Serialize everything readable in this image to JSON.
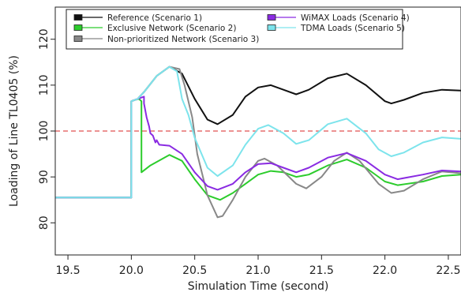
{
  "chart_data": {
    "type": "line",
    "title": "",
    "xlabel": "Simulation Time (second)",
    "ylabel": "Loading of Line TL0405 (%)",
    "xlim": [
      19.4,
      22.6
    ],
    "ylim": [
      73,
      127
    ],
    "xticks": [
      "19.5",
      "20.0",
      "20.5",
      "21.0",
      "21.5",
      "22.0",
      "22.5"
    ],
    "yticks": [
      "80",
      "90",
      "100",
      "110",
      "120"
    ],
    "reference_line": {
      "y": 100,
      "color": "#e05050",
      "style": "dashed"
    },
    "legend_position": "top",
    "series": [
      {
        "name": "Reference (Scenario 1)",
        "color": "#111111",
        "points": [
          [
            19.4,
            85.5
          ],
          [
            20.0,
            85.5
          ],
          [
            20.0,
            106.5
          ],
          [
            20.05,
            107.0
          ],
          [
            20.1,
            108.5
          ],
          [
            20.2,
            112.0
          ],
          [
            20.3,
            114.0
          ],
          [
            20.4,
            112.5
          ],
          [
            20.5,
            107.0
          ],
          [
            20.6,
            102.5
          ],
          [
            20.68,
            101.5
          ],
          [
            20.8,
            103.5
          ],
          [
            20.9,
            107.5
          ],
          [
            21.0,
            109.5
          ],
          [
            21.1,
            110.0
          ],
          [
            21.2,
            109.0
          ],
          [
            21.3,
            108.0
          ],
          [
            21.4,
            109.0
          ],
          [
            21.55,
            111.5
          ],
          [
            21.7,
            112.5
          ],
          [
            21.85,
            110.0
          ],
          [
            22.0,
            106.5
          ],
          [
            22.05,
            106.0
          ],
          [
            22.15,
            106.8
          ],
          [
            22.3,
            108.3
          ],
          [
            22.45,
            109.0
          ],
          [
            22.6,
            108.8
          ]
        ]
      },
      {
        "name": "Exclusive Network (Scenario 2)",
        "color": "#2ccc2c",
        "points": [
          [
            19.4,
            85.5
          ],
          [
            20.0,
            85.5
          ],
          [
            20.0,
            106.5
          ],
          [
            20.03,
            106.8
          ],
          [
            20.06,
            107.0
          ],
          [
            20.08,
            106.5
          ],
          [
            20.08,
            91.0
          ],
          [
            20.15,
            92.5
          ],
          [
            20.3,
            94.8
          ],
          [
            20.4,
            93.5
          ],
          [
            20.5,
            89.5
          ],
          [
            20.6,
            86.0
          ],
          [
            20.7,
            85.0
          ],
          [
            20.8,
            86.5
          ],
          [
            20.9,
            88.5
          ],
          [
            21.0,
            90.5
          ],
          [
            21.1,
            91.3
          ],
          [
            21.2,
            91.0
          ],
          [
            21.3,
            90.0
          ],
          [
            21.4,
            90.5
          ],
          [
            21.55,
            92.5
          ],
          [
            21.7,
            93.8
          ],
          [
            21.85,
            92.0
          ],
          [
            22.0,
            89.0
          ],
          [
            22.1,
            88.2
          ],
          [
            22.3,
            89.0
          ],
          [
            22.45,
            90.2
          ],
          [
            22.6,
            90.5
          ]
        ]
      },
      {
        "name": "Non-prioritized Network (Scenario 3)",
        "color": "#888888",
        "points": [
          [
            19.4,
            85.5
          ],
          [
            20.0,
            85.5
          ],
          [
            20.0,
            106.5
          ],
          [
            20.05,
            107.0
          ],
          [
            20.1,
            108.5
          ],
          [
            20.2,
            112.0
          ],
          [
            20.3,
            114.0
          ],
          [
            20.38,
            113.5
          ],
          [
            20.42,
            110.0
          ],
          [
            20.48,
            103.0
          ],
          [
            20.52,
            95.0
          ],
          [
            20.6,
            86.0
          ],
          [
            20.68,
            81.2
          ],
          [
            20.72,
            81.5
          ],
          [
            20.8,
            85.0
          ],
          [
            20.9,
            90.0
          ],
          [
            21.0,
            93.5
          ],
          [
            21.05,
            94.0
          ],
          [
            21.15,
            92.5
          ],
          [
            21.3,
            88.5
          ],
          [
            21.38,
            87.5
          ],
          [
            21.5,
            90.0
          ],
          [
            21.6,
            93.5
          ],
          [
            21.7,
            95.3
          ],
          [
            21.8,
            93.5
          ],
          [
            21.95,
            88.5
          ],
          [
            22.05,
            86.5
          ],
          [
            22.15,
            87.0
          ],
          [
            22.3,
            89.5
          ],
          [
            22.45,
            91.2
          ],
          [
            22.6,
            90.8
          ]
        ]
      },
      {
        "name": "WiMAX Loads (Scenario 4)",
        "color": "#8a2be2",
        "points": [
          [
            19.4,
            85.5
          ],
          [
            20.0,
            85.5
          ],
          [
            20.0,
            106.5
          ],
          [
            20.05,
            107.0
          ],
          [
            20.1,
            107.5
          ],
          [
            20.1,
            106.0
          ],
          [
            20.12,
            103.0
          ],
          [
            20.14,
            101.0
          ],
          [
            20.15,
            99.5
          ],
          [
            20.17,
            99.0
          ],
          [
            20.19,
            97.5
          ],
          [
            20.2,
            98.0
          ],
          [
            20.22,
            97.0
          ],
          [
            20.3,
            96.8
          ],
          [
            20.4,
            95.0
          ],
          [
            20.5,
            91.0
          ],
          [
            20.6,
            88.0
          ],
          [
            20.68,
            87.2
          ],
          [
            20.8,
            88.5
          ],
          [
            20.9,
            91.0
          ],
          [
            21.0,
            92.8
          ],
          [
            21.1,
            93.0
          ],
          [
            21.2,
            92.0
          ],
          [
            21.3,
            91.0
          ],
          [
            21.4,
            92.0
          ],
          [
            21.55,
            94.2
          ],
          [
            21.7,
            95.2
          ],
          [
            21.85,
            93.5
          ],
          [
            22.0,
            90.5
          ],
          [
            22.1,
            89.5
          ],
          [
            22.3,
            90.5
          ],
          [
            22.45,
            91.4
          ],
          [
            22.6,
            91.2
          ]
        ]
      },
      {
        "name": "TDMA Loads (Scenario 5)",
        "color": "#7de4ec",
        "points": [
          [
            19.4,
            85.5
          ],
          [
            20.0,
            85.5
          ],
          [
            20.0,
            95.0
          ],
          [
            20.0,
            106.5
          ],
          [
            20.05,
            107.0
          ],
          [
            20.1,
            108.5
          ],
          [
            20.2,
            112.0
          ],
          [
            20.3,
            114.0
          ],
          [
            20.36,
            113.0
          ],
          [
            20.4,
            107.0
          ],
          [
            20.45,
            103.5
          ],
          [
            20.5,
            98.5
          ],
          [
            20.6,
            92.0
          ],
          [
            20.68,
            90.2
          ],
          [
            20.8,
            92.5
          ],
          [
            20.9,
            97.0
          ],
          [
            21.0,
            100.5
          ],
          [
            21.08,
            101.3
          ],
          [
            21.2,
            99.5
          ],
          [
            21.3,
            97.2
          ],
          [
            21.4,
            98.0
          ],
          [
            21.55,
            101.5
          ],
          [
            21.7,
            102.7
          ],
          [
            21.85,
            99.5
          ],
          [
            21.95,
            96.0
          ],
          [
            22.05,
            94.5
          ],
          [
            22.15,
            95.3
          ],
          [
            22.3,
            97.5
          ],
          [
            22.45,
            98.6
          ],
          [
            22.6,
            98.3
          ]
        ]
      }
    ]
  }
}
